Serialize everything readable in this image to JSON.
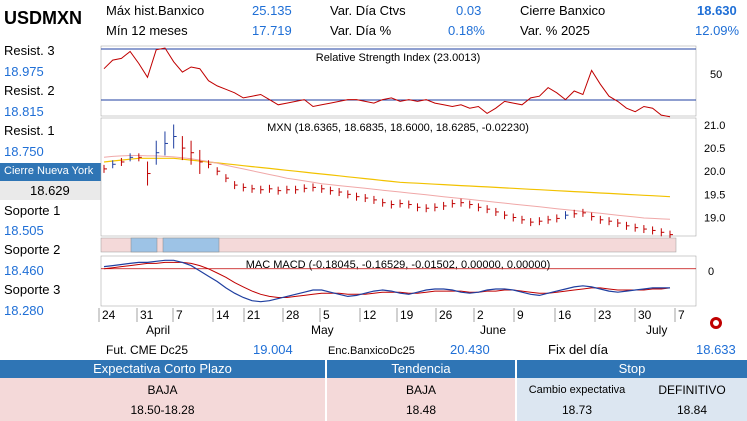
{
  "header": {
    "symbol": "USDMXN",
    "max_hist_label": "Máx hist.Banxico",
    "max_hist_value": "25.135",
    "min12_label": "Mín 12 meses",
    "min12_value": "17.719",
    "var_dia_ctvs_label": "Var. Día Ctvs",
    "var_dia_ctvs_value": "0.03",
    "var_dia_pct_label": "Var. Día %",
    "var_dia_pct_value": "0.18%",
    "cierre_banxico_label": "Cierre Banxico",
    "cierre_banxico_value": "18.630",
    "var_2025_label": "Var. % 2025",
    "var_2025_value": "12.09%"
  },
  "levels": {
    "resist3_label": "Resist. 3",
    "resist3_value": "18.975",
    "resist2_label": "Resist. 2",
    "resist2_value": "18.815",
    "resist1_label": "Resist. 1",
    "resist1_value": "18.750",
    "ny_label": "Cierre Nueva York",
    "ny_value": "18.629",
    "soporte1_label": "Soporte 1",
    "soporte1_value": "18.505",
    "soporte2_label": "Soporte 2",
    "soporte2_value": "18.460",
    "soporte3_label": "Soporte 3",
    "soporte3_value": "18.280"
  },
  "chart_data": [
    {
      "type": "line",
      "title": "Relative Strength Index (23.0013)",
      "yticks": [
        50
      ],
      "ylim": [
        0,
        100
      ],
      "reference_lines": [
        75,
        20
      ],
      "series": [
        {
          "values": [
            62,
            72,
            74,
            82,
            68,
            52,
            84,
            86,
            70,
            58,
            64,
            62,
            48,
            42,
            38,
            34,
            28,
            30,
            32,
            26,
            20,
            22,
            24,
            26,
            18,
            20,
            22,
            24,
            26,
            26,
            24,
            22,
            26,
            28,
            24,
            26,
            24,
            26,
            22,
            20,
            18,
            20,
            16,
            18,
            10,
            16,
            24,
            22,
            20,
            28,
            30,
            40,
            34,
            26,
            36,
            32,
            60,
            44,
            30,
            24,
            16,
            12,
            18,
            16,
            8,
            6
          ],
          "color": "#c00000"
        }
      ]
    },
    {
      "type": "line",
      "title": "MXN (18.6365, 18.6835, 18.6000, 18.6285, -0.02230)",
      "yticks": [
        19.0,
        19.5,
        20.0,
        20.5,
        21.0
      ],
      "ylim": [
        18.6,
        21.15
      ],
      "series": [
        {
          "name": "price",
          "color": "#c00000",
          "values": [
            20.05,
            20.15,
            20.2,
            20.3,
            20.3,
            19.95,
            20.4,
            20.6,
            20.75,
            20.5,
            20.4,
            20.2,
            20.15,
            20.0,
            19.85,
            19.7,
            19.65,
            19.62,
            19.6,
            19.62,
            19.58,
            19.6,
            19.6,
            19.63,
            19.65,
            19.62,
            19.58,
            19.55,
            19.5,
            19.45,
            19.42,
            19.38,
            19.32,
            19.28,
            19.3,
            19.28,
            19.22,
            19.2,
            19.22,
            19.25,
            19.3,
            19.32,
            19.28,
            19.22,
            19.18,
            19.12,
            19.05,
            19.0,
            18.95,
            18.9,
            18.92,
            18.95,
            18.98,
            19.05,
            19.08,
            19.1,
            19.02,
            18.95,
            18.92,
            18.88,
            18.82,
            18.78,
            18.75,
            18.72,
            18.68,
            18.63
          ]
        },
        {
          "name": "ma1",
          "color": "#f2c200",
          "values": [
            20.2,
            20.22,
            20.24,
            20.26,
            20.28,
            20.28,
            20.28,
            20.28,
            20.28,
            20.26,
            20.24,
            20.22,
            20.2,
            20.18,
            20.16,
            20.14,
            20.12,
            20.1,
            20.08,
            20.06,
            20.04,
            20.02,
            20.0,
            19.98,
            19.96,
            19.94,
            19.92,
            19.9,
            19.88,
            19.86,
            19.84,
            19.82,
            19.8,
            19.78,
            19.76,
            19.75,
            19.74,
            19.73,
            19.72,
            19.71,
            19.7,
            19.69,
            19.68,
            19.67,
            19.66,
            19.65,
            19.64,
            19.63,
            19.62,
            19.61,
            19.6,
            19.59,
            19.58,
            19.57,
            19.56,
            19.55,
            19.54,
            19.53,
            19.52,
            19.51,
            19.5,
            19.49,
            19.48,
            19.47,
            19.46,
            19.45
          ]
        },
        {
          "name": "ma2",
          "color": "#f0a8a8",
          "values": [
            20.3,
            20.32,
            20.33,
            20.34,
            20.34,
            20.33,
            20.33,
            20.32,
            20.31,
            20.29,
            20.27,
            20.24,
            20.21,
            20.17,
            20.13,
            20.09,
            20.05,
            20.01,
            19.97,
            19.93,
            19.89,
            19.85,
            19.82,
            19.79,
            19.76,
            19.73,
            19.71,
            19.69,
            19.67,
            19.65,
            19.63,
            19.61,
            19.59,
            19.57,
            19.55,
            19.53,
            19.51,
            19.49,
            19.47,
            19.45,
            19.43,
            19.41,
            19.39,
            19.37,
            19.35,
            19.33,
            19.31,
            19.29,
            19.27,
            19.25,
            19.23,
            19.21,
            19.19,
            19.17,
            19.15,
            19.13,
            19.11,
            19.09,
            19.07,
            19.05,
            19.03,
            19.01,
            18.99,
            18.98,
            18.97,
            18.96
          ]
        }
      ]
    },
    {
      "type": "line",
      "title": "MAC MACD (-0.18045, -0.16529, -0.01502, 0.00000, 0.00000)",
      "yticks": [
        0
      ],
      "ylim": [
        -0.35,
        0.12
      ],
      "series": [
        {
          "name": "macd",
          "color": "#1f3fa0",
          "values": [
            0.02,
            0.03,
            0.04,
            0.05,
            0.06,
            0.06,
            0.07,
            0.08,
            0.08,
            0.06,
            0.03,
            -0.02,
            -0.07,
            -0.12,
            -0.18,
            -0.23,
            -0.27,
            -0.3,
            -0.31,
            -0.3,
            -0.28,
            -0.26,
            -0.24,
            -0.22,
            -0.2,
            -0.2,
            -0.22,
            -0.24,
            -0.26,
            -0.25,
            -0.23,
            -0.21,
            -0.2,
            -0.21,
            -0.23,
            -0.24,
            -0.22,
            -0.2,
            -0.19,
            -0.19,
            -0.2,
            -0.22,
            -0.23,
            -0.22,
            -0.2,
            -0.19,
            -0.19,
            -0.2,
            -0.22,
            -0.24,
            -0.25,
            -0.23,
            -0.21,
            -0.19,
            -0.17,
            -0.16,
            -0.17,
            -0.19,
            -0.21,
            -0.22,
            -0.21,
            -0.2,
            -0.19,
            -0.18,
            -0.18,
            -0.18
          ]
        },
        {
          "name": "signal",
          "color": "#c00000",
          "values": [
            0.0,
            0.01,
            0.02,
            0.03,
            0.04,
            0.05,
            0.05,
            0.06,
            0.06,
            0.06,
            0.05,
            0.03,
            0.0,
            -0.04,
            -0.08,
            -0.13,
            -0.17,
            -0.21,
            -0.24,
            -0.26,
            -0.27,
            -0.27,
            -0.26,
            -0.25,
            -0.24,
            -0.23,
            -0.23,
            -0.23,
            -0.24,
            -0.24,
            -0.24,
            -0.23,
            -0.22,
            -0.22,
            -0.22,
            -0.23,
            -0.23,
            -0.22,
            -0.21,
            -0.21,
            -0.21,
            -0.21,
            -0.22,
            -0.22,
            -0.21,
            -0.21,
            -0.2,
            -0.2,
            -0.21,
            -0.22,
            -0.23,
            -0.23,
            -0.22,
            -0.21,
            -0.2,
            -0.19,
            -0.18,
            -0.18,
            -0.19,
            -0.2,
            -0.2,
            -0.2,
            -0.2,
            -0.19,
            -0.19,
            -0.18
          ]
        }
      ]
    }
  ],
  "xaxis": {
    "day_labels": [
      "24",
      "31",
      "7",
      "14",
      "21",
      "28",
      "5",
      "12",
      "19",
      "26",
      "2",
      "9",
      "16",
      "23",
      "30",
      "7"
    ],
    "month_labels": [
      "April",
      "May",
      "June",
      "July"
    ]
  },
  "footer": {
    "fut_label": "Fut. CME Dc25",
    "fut_value": "19.004",
    "enc_label": "Enc.BanxicoDc25",
    "enc_value": "20.430",
    "fix_label": "Fix del día",
    "fix_value": "18.633",
    "exp_header": "Expectativa Corto Plazo",
    "exp_value": "BAJA",
    "exp_range": "18.50-18.28",
    "tend_header": "Tendencia",
    "tend_value": "BAJA",
    "tend_level": "18.48",
    "stop_header": "Stop",
    "cambio_label": "Cambio expectativa",
    "cambio_value": "18.73",
    "def_label": "DEFINITIVO",
    "def_value": "18.84"
  }
}
